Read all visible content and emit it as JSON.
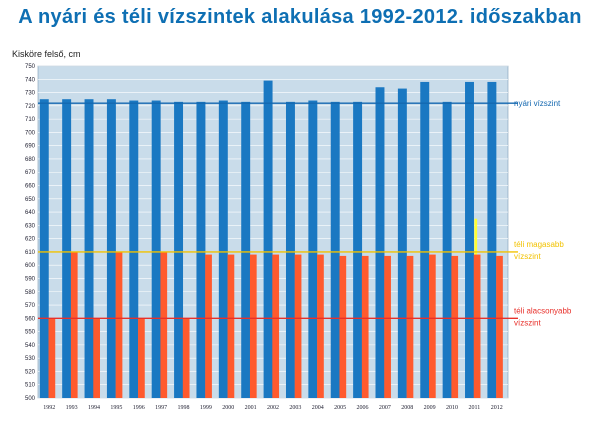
{
  "chart_data": {
    "type": "bar",
    "title": "A nyári és téli vízszintek alakulása 1992-2012. időszakban",
    "ylabel": "Kisköre felső, cm",
    "ylim": [
      500,
      750
    ],
    "yticks": [
      500,
      510,
      520,
      530,
      540,
      550,
      560,
      570,
      580,
      590,
      600,
      610,
      620,
      630,
      640,
      650,
      660,
      670,
      680,
      690,
      700,
      710,
      720,
      730,
      740,
      750
    ],
    "categories": [
      "1992",
      "1993",
      "1994",
      "1995",
      "1996",
      "1997",
      "1998",
      "1999",
      "2000",
      "2001",
      "2002",
      "2003",
      "2004",
      "2005",
      "2006",
      "2007",
      "2008",
      "2009",
      "2010",
      "2011",
      "2012"
    ],
    "series": [
      {
        "color": "#1a78c2",
        "values": [
          725,
          725,
          725,
          725,
          724,
          724,
          723,
          723,
          724,
          723,
          739,
          723,
          724,
          723,
          723,
          734,
          733,
          738,
          723,
          738,
          738
        ]
      },
      {
        "color": "#ffff33",
        "values": [
          null,
          null,
          null,
          null,
          null,
          null,
          null,
          null,
          null,
          null,
          558,
          null,
          558,
          null,
          null,
          558,
          null,
          null,
          null,
          635,
          null
        ]
      },
      {
        "color": "#ff5a2e",
        "values": [
          560,
          610,
          560,
          610,
          560,
          610,
          560,
          608,
          608,
          608,
          608,
          608,
          608,
          607,
          607,
          607,
          607,
          608,
          607,
          608,
          607
        ]
      }
    ],
    "reference_lines": [
      {
        "value": 722,
        "label": "nyári vízszint",
        "color": "#1468b0"
      },
      {
        "value": 610,
        "label_lines": [
          "téli magasabb",
          "vízszint"
        ],
        "color": "#f2c200"
      },
      {
        "value": 560,
        "label_lines": [
          "téli alacsonyabb",
          "vízszint"
        ],
        "color": "#e8302a"
      }
    ],
    "grid": true,
    "plot_background": "#c9dcea"
  }
}
